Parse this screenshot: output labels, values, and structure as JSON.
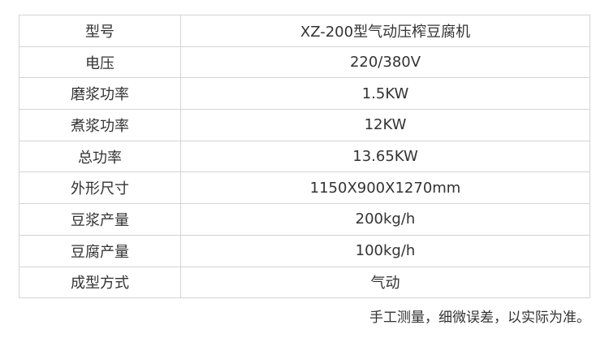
{
  "specs": [
    {
      "label": "型号",
      "value": "XZ-200型气动压榨豆腐机"
    },
    {
      "label": "电压",
      "value": "220/380V"
    },
    {
      "label": "磨浆功率",
      "value": "1.5KW"
    },
    {
      "label": "煮浆功率",
      "value": "12KW"
    },
    {
      "label": "总功率",
      "value": "13.65KW"
    },
    {
      "label": "外形尺寸",
      "value": "1150X900X1270mm"
    },
    {
      "label": "豆浆产量",
      "value": "200kg/h"
    },
    {
      "label": "豆腐产量",
      "value": "100kg/h"
    },
    {
      "label": "成型方式",
      "value": "气动"
    }
  ],
  "note": "手工测量，细微误差，以实际为准。"
}
